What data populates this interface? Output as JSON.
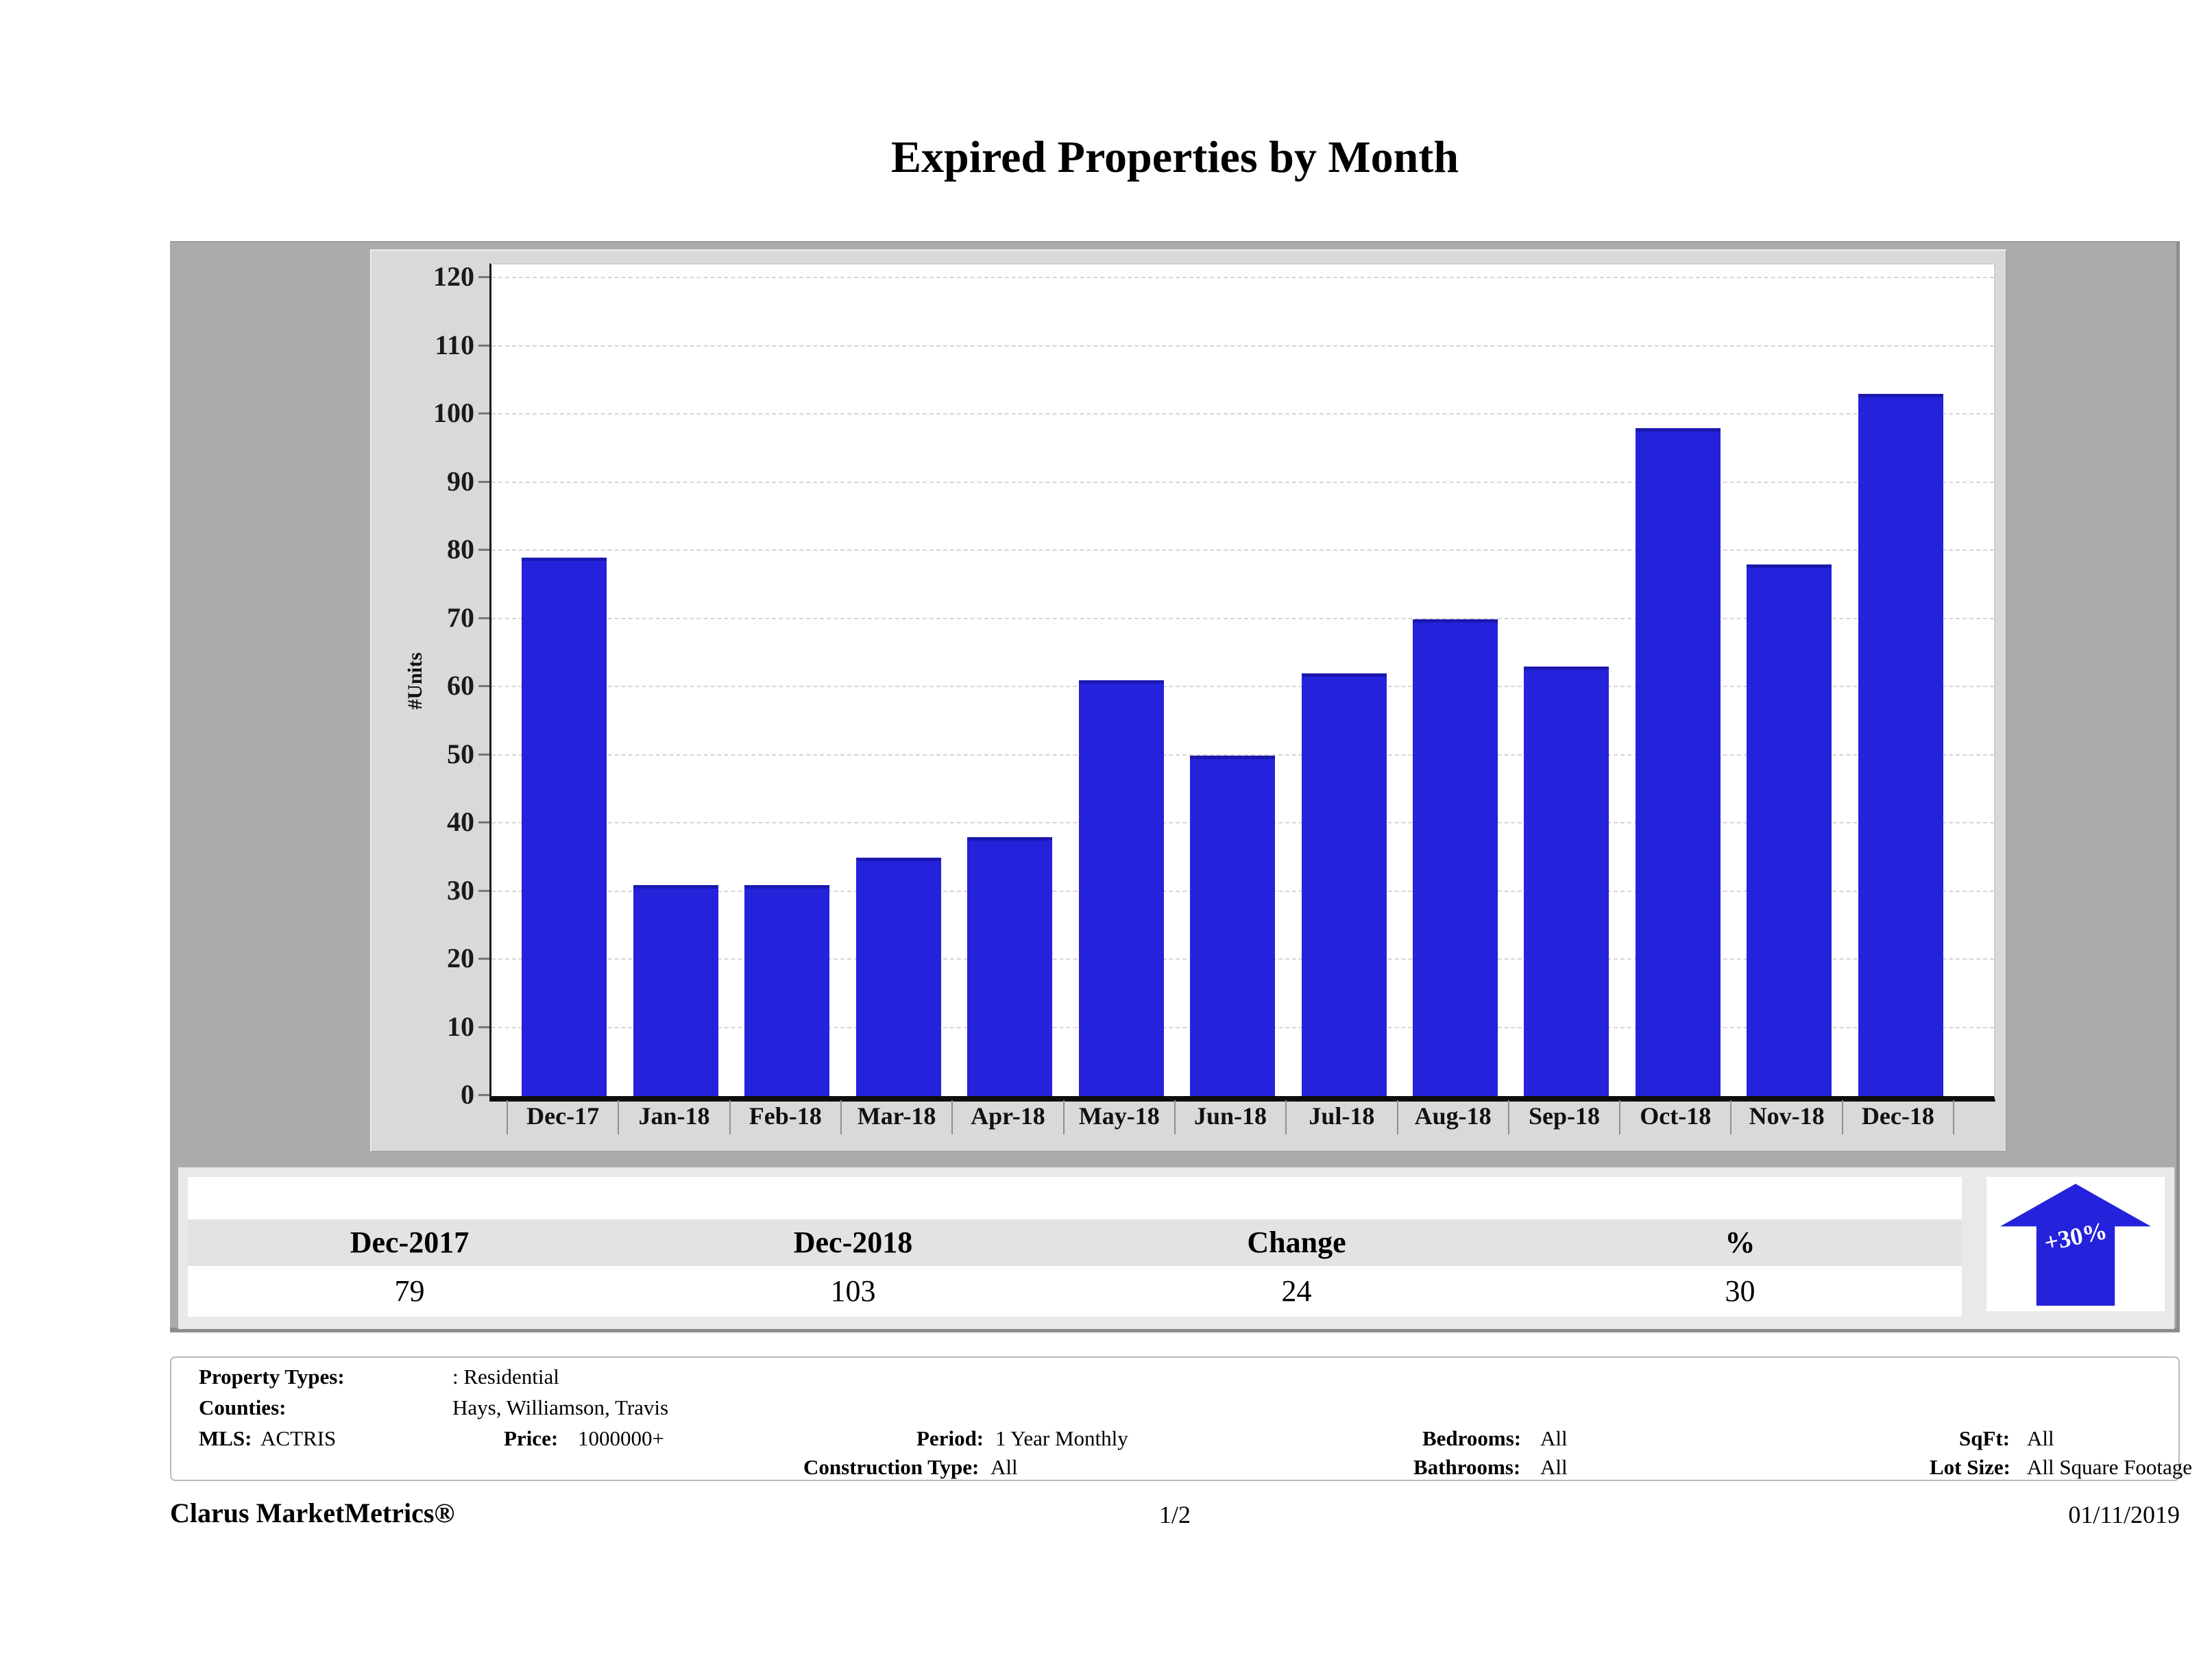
{
  "title": "Expired Properties by Month",
  "chart_data": {
    "type": "bar",
    "title": "Expired Properties by Month",
    "categories": [
      "Dec-17",
      "Jan-18",
      "Feb-18",
      "Mar-18",
      "Apr-18",
      "May-18",
      "Jun-18",
      "Jul-18",
      "Aug-18",
      "Sep-18",
      "Oct-18",
      "Nov-18",
      "Dec-18"
    ],
    "values": [
      79,
      31,
      31,
      35,
      38,
      61,
      50,
      62,
      70,
      63,
      98,
      78,
      103
    ],
    "xlabel": "",
    "ylabel": "#Units",
    "ylim": [
      0,
      120
    ],
    "ytick_step": 10,
    "grid": "horizontal-dashed",
    "legend": "none",
    "bar_color": "#2522dc"
  },
  "summary_table": {
    "headers": [
      "Dec-2017",
      "Dec-2018",
      "Change",
      "%"
    ],
    "values": [
      "79",
      "103",
      "24",
      "30"
    ]
  },
  "change_badge": {
    "label": "+30%",
    "direction": "up",
    "color": "#2522dc"
  },
  "filters": {
    "property_types_label": "Property Types:",
    "property_types_value": ": Residential",
    "counties_label": "Counties:",
    "counties_value": "Hays, Williamson, Travis",
    "mls_label": "MLS:",
    "mls_value": "ACTRIS",
    "price_label": "Price:",
    "price_value": "1000000+",
    "period_label": "Period:",
    "period_value": "1 Year Monthly",
    "construction_label": "Construction Type:",
    "construction_value": "All",
    "bedrooms_label": "Bedrooms:",
    "bedrooms_value": "All",
    "bathrooms_label": "Bathrooms:",
    "bathrooms_value": "All",
    "sqft_label": "SqFt:",
    "sqft_value": "All",
    "lot_size_label": "Lot Size:",
    "lot_size_value": "All Square Footage"
  },
  "footer": {
    "brand": "Clarus MarketMetrics®",
    "page": "1/2",
    "date": "01/11/2019"
  }
}
